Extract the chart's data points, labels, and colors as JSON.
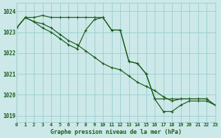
{
  "title": "Graphe pression niveau de la mer (hPa)",
  "background_color": "#cce8e8",
  "grid_color": "#99cccc",
  "line_color": "#1a5c1a",
  "x_labels": [
    "0",
    "1",
    "2",
    "3",
    "4",
    "5",
    "6",
    "7",
    "8",
    "9",
    "10",
    "11",
    "12",
    "13",
    "14",
    "15",
    "16",
    "17",
    "18",
    "19",
    "20",
    "21",
    "22",
    "23"
  ],
  "xlim": [
    0,
    23
  ],
  "ylim": [
    1018.7,
    1024.4
  ],
  "yticks": [
    1019,
    1020,
    1021,
    1022,
    1023,
    1024
  ],
  "series1": [
    1023.2,
    1023.7,
    1023.7,
    1023.8,
    1023.7,
    1023.7,
    1023.7,
    1023.7,
    1023.7,
    1023.7,
    1023.7,
    1023.1,
    1023.1,
    1021.6,
    1021.5,
    1021.0,
    1019.8,
    1019.8,
    1019.8,
    1019.8,
    1019.8,
    1019.8,
    1019.8,
    1019.5
  ],
  "series2": [
    1023.2,
    1023.7,
    1023.5,
    1023.4,
    1023.2,
    1022.9,
    1022.6,
    1022.4,
    1022.1,
    1021.8,
    1021.5,
    1021.3,
    1021.2,
    1020.9,
    1020.6,
    1020.4,
    1020.2,
    1019.9,
    1019.7,
    1019.8,
    1019.8,
    1019.8,
    1019.8,
    1019.5
  ],
  "series3": [
    1023.2,
    1023.7,
    1023.5,
    1023.2,
    1023.0,
    1022.7,
    1022.4,
    1022.2,
    1023.1,
    1023.6,
    1023.7,
    1023.1,
    1023.1,
    1021.6,
    1021.5,
    1021.0,
    1019.8,
    1019.2,
    1019.2,
    1019.5,
    1019.7,
    1019.7,
    1019.7,
    1019.5
  ],
  "figsize": [
    3.2,
    2.0
  ],
  "dpi": 100,
  "title_fontsize": 6.0,
  "tick_fontsize": 5.0,
  "linewidth": 0.9,
  "markersize": 3.0,
  "markeredgewidth": 0.8
}
